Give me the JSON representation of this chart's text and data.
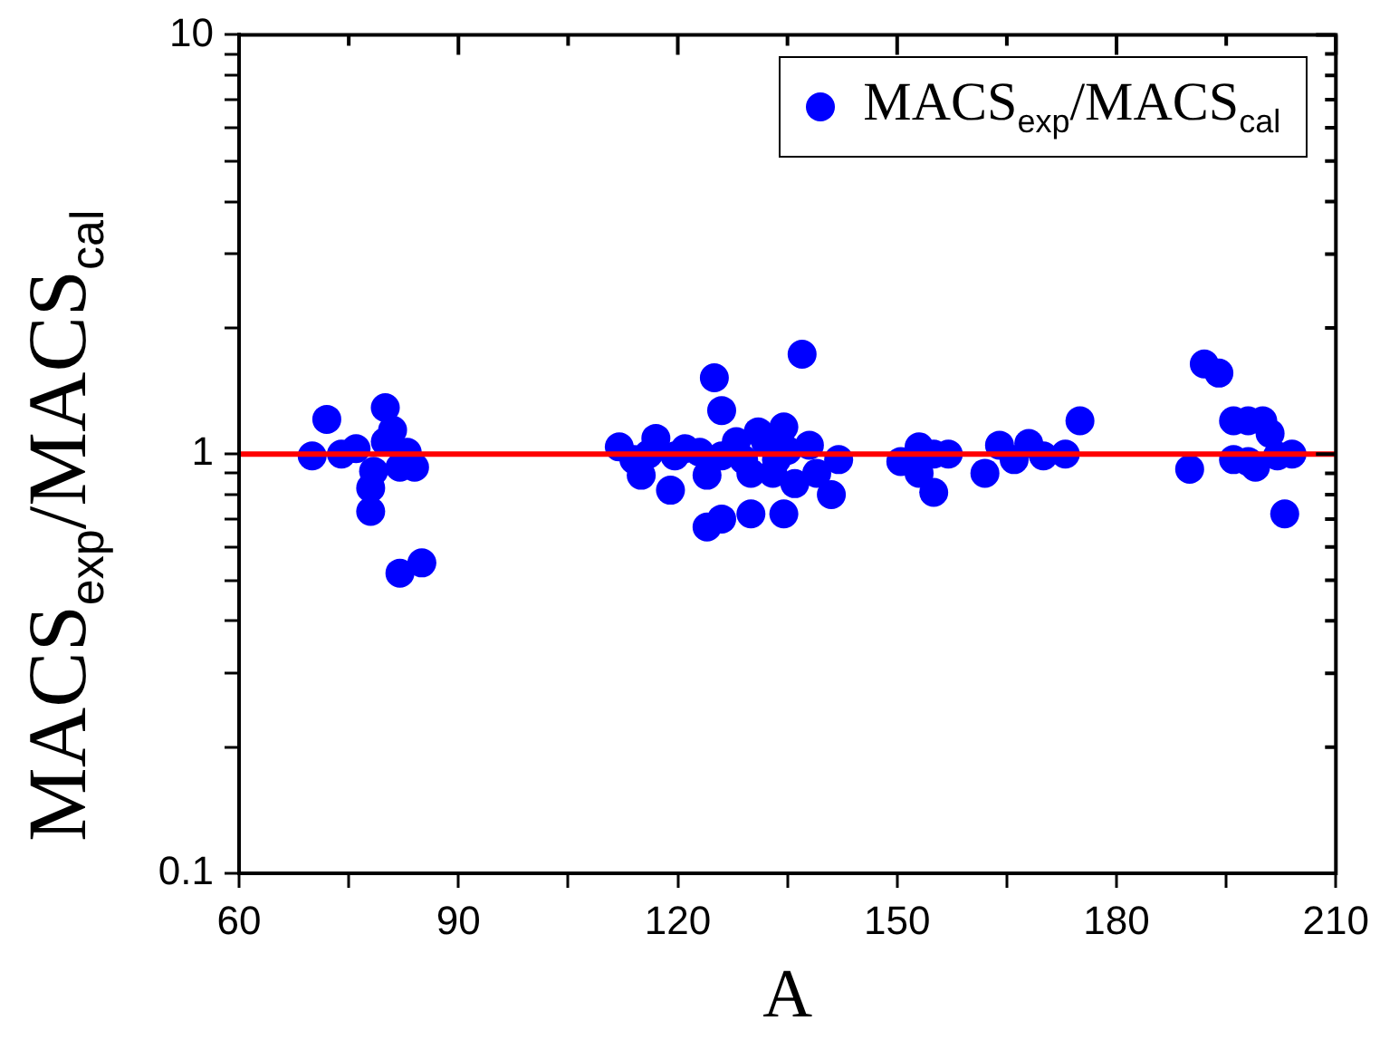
{
  "chart_data": {
    "type": "scatter",
    "xlabel": "A",
    "ylabel": "MACS$_{exp}$/MACS$_{cal}$",
    "log": "y",
    "grid": false,
    "legend": "top right",
    "marker": "circle",
    "xlim": [
      60,
      210
    ],
    "xticks": [
      60,
      {
        "value": 75,
        "label": null
      },
      90,
      {
        "value": 105,
        "label": null
      },
      120,
      {
        "value": 135,
        "label": null
      },
      150,
      {
        "value": 165,
        "label": null
      },
      180,
      {
        "value": 195,
        "label": null
      },
      210
    ],
    "ylim": [
      0.1,
      10
    ],
    "yticks": [
      {
        "value": 0.1,
        "label": "0.1"
      },
      {
        "value": 0.2,
        "label": null
      },
      {
        "value": 0.3,
        "label": null
      },
      {
        "value": 0.4,
        "label": null
      },
      {
        "value": 0.5,
        "label": null
      },
      {
        "value": 0.6,
        "label": null
      },
      {
        "value": 0.7,
        "label": null
      },
      {
        "value": 0.8,
        "label": null
      },
      {
        "value": 0.9,
        "label": null
      },
      1,
      {
        "value": 2,
        "label": null
      },
      {
        "value": 3,
        "label": null
      },
      {
        "value": 4,
        "label": null
      },
      {
        "value": 5,
        "label": null
      },
      {
        "value": 6,
        "label": null
      },
      {
        "value": 7,
        "label": null
      },
      {
        "value": 8,
        "label": null
      },
      {
        "value": 9,
        "label": null
      },
      10
    ],
    "series": [
      {
        "name": "MACS$_{exp}$/MACS$_{cal}$",
        "color": "#0000ff",
        "x": [
          70,
          72,
          74,
          76,
          78.4,
          78,
          78,
          80,
          81,
          80,
          83,
          82,
          84,
          82,
          85,
          112,
          114,
          115,
          117,
          116,
          119,
          119.6,
          121,
          123,
          124,
          125,
          126,
          124,
          126,
          126,
          128,
          130,
          130,
          131,
          132,
          133,
          134.5,
          134.5,
          135,
          136,
          137,
          138,
          139,
          141,
          142,
          129,
          133.5,
          150.5,
          153,
          153,
          155,
          155,
          157,
          162,
          164,
          166,
          168,
          170,
          173,
          175,
          190,
          192,
          194,
          196,
          198,
          200,
          201,
          196,
          198,
          199,
          202,
          204,
          203
        ],
        "values": [
          0.99,
          1.21,
          1.0,
          1.03,
          0.91,
          0.83,
          0.73,
          1.29,
          1.14,
          1.07,
          1.01,
          0.93,
          0.93,
          0.52,
          0.55,
          1.04,
          0.97,
          0.89,
          1.09,
          1.0,
          0.82,
          0.99,
          1.03,
          1.01,
          0.89,
          1.52,
          1.27,
          0.67,
          0.7,
          0.99,
          1.07,
          0.9,
          0.72,
          1.13,
          1.07,
          0.9,
          1.16,
          0.72,
          1.02,
          0.85,
          1.73,
          1.05,
          0.9,
          0.8,
          0.97,
          0.97,
          0.97,
          0.96,
          1.04,
          0.9,
          0.81,
          1.0,
          1.0,
          0.9,
          1.05,
          0.97,
          1.06,
          0.99,
          1.0,
          1.2,
          0.92,
          1.64,
          1.56,
          1.2,
          1.2,
          1.2,
          1.12,
          0.97,
          0.96,
          0.93,
          0.99,
          1.0,
          0.72
        ]
      }
    ],
    "ref_lines": [
      {
        "axis": "y",
        "value": 1,
        "color": "#ff0000"
      }
    ]
  }
}
